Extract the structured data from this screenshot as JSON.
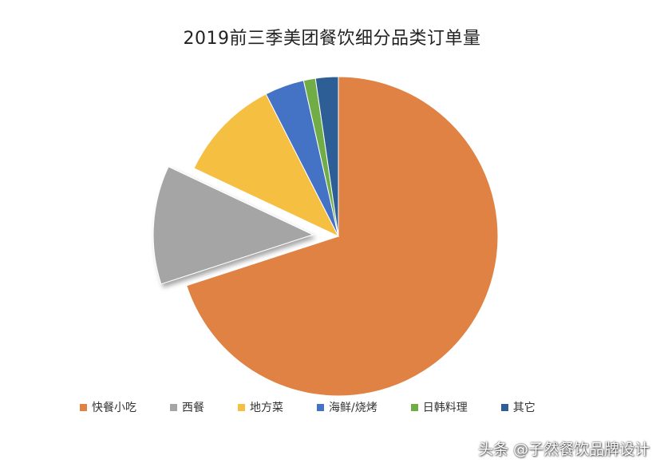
{
  "chart_data": {
    "type": "pie",
    "title": "2019前三季美团餐饮细分品类订单量",
    "categories": [
      "快餐小吃",
      "西餐",
      "地方菜",
      "海鲜/烧烤",
      "日韩料理",
      "其它"
    ],
    "values": [
      70.0,
      12.0,
      10.5,
      4.0,
      1.2,
      2.3
    ],
    "unit": "%",
    "colors": [
      "#E08244",
      "#A5A5A5",
      "#F5C041",
      "#4472C4",
      "#70AD47",
      "#2E5E96"
    ],
    "exploded_slice": "西餐",
    "legend_position": "bottom"
  },
  "watermark": "头条 @子然餐饮品牌设计"
}
